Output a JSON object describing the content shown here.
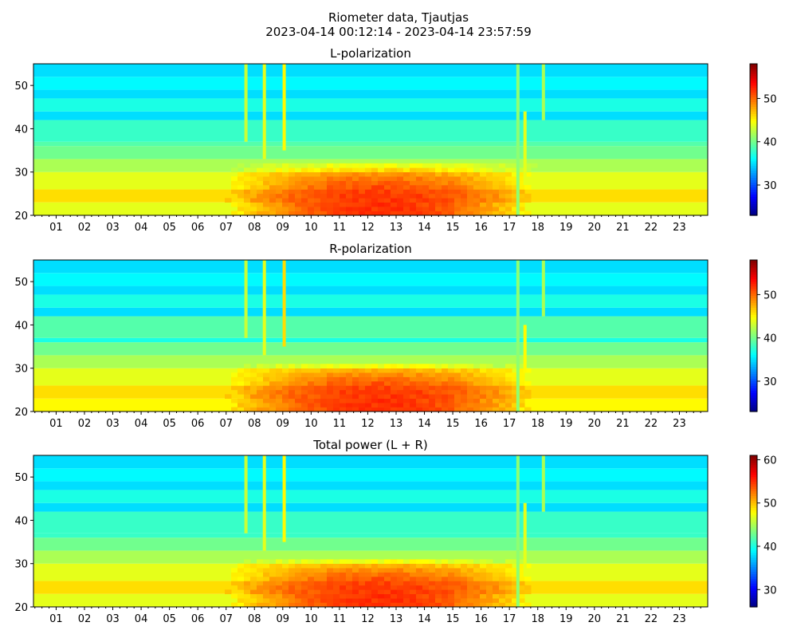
{
  "figure": {
    "title_line1": "Riometer data, Tjautjas",
    "title_line2": "2023-04-14 00:12:14 - 2023-04-14 23:57:59"
  },
  "chart_data": [
    {
      "type": "heatmap",
      "title": "L-polarization",
      "xlabel": "",
      "ylabel": "",
      "x_unit": "hour of day",
      "xlim": [
        0.2,
        24.0
      ],
      "ylim": [
        20,
        55
      ],
      "x_ticks": [
        "01",
        "02",
        "03",
        "04",
        "05",
        "06",
        "07",
        "08",
        "09",
        "10",
        "11",
        "12",
        "13",
        "14",
        "15",
        "16",
        "17",
        "18",
        "19",
        "20",
        "21",
        "22",
        "23"
      ],
      "y_ticks": [
        20,
        30,
        40,
        50
      ],
      "colormap": "jet",
      "colorbar": {
        "range": [
          23,
          58
        ],
        "ticks": [
          30,
          40,
          50
        ]
      },
      "bands": [
        {
          "y": [
            20,
            23
          ],
          "value": 44
        },
        {
          "y": [
            23,
            26
          ],
          "value": 46
        },
        {
          "y": [
            26,
            30
          ],
          "value": 44
        },
        {
          "y": [
            30,
            33
          ],
          "value": 42
        },
        {
          "y": [
            33,
            36
          ],
          "value": 40
        },
        {
          "y": [
            36,
            37
          ],
          "value": 39
        },
        {
          "y": [
            37,
            42
          ],
          "value": 38
        },
        {
          "y": [
            42,
            44
          ],
          "value": 35
        },
        {
          "y": [
            44,
            47
          ],
          "value": 37
        },
        {
          "y": [
            47,
            49
          ],
          "value": 35
        },
        {
          "y": [
            49,
            52
          ],
          "value": 36
        },
        {
          "y": [
            52,
            55
          ],
          "value": 35
        }
      ],
      "daytime_peak": {
        "center_hour": 12.3,
        "halfwidth_hours": 5.5,
        "y_top": 32,
        "peak_value": 52
      },
      "spikes": [
        {
          "hour": 7.7,
          "y": [
            37,
            55
          ],
          "value": 43
        },
        {
          "hour": 8.35,
          "y": [
            33,
            55
          ],
          "value": 44
        },
        {
          "hour": 9.05,
          "y": [
            35,
            55
          ],
          "value": 45
        },
        {
          "hour": 17.3,
          "y": [
            20,
            55
          ],
          "value": 41
        },
        {
          "hour": 17.55,
          "y": [
            27,
            44
          ],
          "value": 44
        },
        {
          "hour": 18.2,
          "y": [
            42,
            55
          ],
          "value": 42
        }
      ]
    },
    {
      "type": "heatmap",
      "title": "R-polarization",
      "xlabel": "",
      "ylabel": "",
      "x_unit": "hour of day",
      "xlim": [
        0.2,
        24.0
      ],
      "ylim": [
        20,
        55
      ],
      "x_ticks": [
        "01",
        "02",
        "03",
        "04",
        "05",
        "06",
        "07",
        "08",
        "09",
        "10",
        "11",
        "12",
        "13",
        "14",
        "15",
        "16",
        "17",
        "18",
        "19",
        "20",
        "21",
        "22",
        "23"
      ],
      "y_ticks": [
        20,
        30,
        40,
        50
      ],
      "colormap": "jet",
      "colorbar": {
        "range": [
          23,
          58
        ],
        "ticks": [
          30,
          40,
          50
        ]
      },
      "bands": [
        {
          "y": [
            20,
            23
          ],
          "value": 45
        },
        {
          "y": [
            23,
            26
          ],
          "value": 46
        },
        {
          "y": [
            26,
            30
          ],
          "value": 44
        },
        {
          "y": [
            30,
            33
          ],
          "value": 42
        },
        {
          "y": [
            33,
            36
          ],
          "value": 40
        },
        {
          "y": [
            36,
            37
          ],
          "value": 37
        },
        {
          "y": [
            37,
            42
          ],
          "value": 39
        },
        {
          "y": [
            42,
            44
          ],
          "value": 35
        },
        {
          "y": [
            44,
            47
          ],
          "value": 37
        },
        {
          "y": [
            47,
            49
          ],
          "value": 35
        },
        {
          "y": [
            49,
            52
          ],
          "value": 36
        },
        {
          "y": [
            52,
            55
          ],
          "value": 35
        }
      ],
      "daytime_peak": {
        "center_hour": 12.3,
        "halfwidth_hours": 5.5,
        "y_top": 31,
        "peak_value": 52
      },
      "spikes": [
        {
          "hour": 7.7,
          "y": [
            37,
            55
          ],
          "value": 43
        },
        {
          "hour": 8.35,
          "y": [
            33,
            55
          ],
          "value": 44
        },
        {
          "hour": 9.05,
          "y": [
            35,
            55
          ],
          "value": 46
        },
        {
          "hour": 17.3,
          "y": [
            20,
            55
          ],
          "value": 41
        },
        {
          "hour": 17.55,
          "y": [
            29,
            40
          ],
          "value": 45
        },
        {
          "hour": 18.2,
          "y": [
            42,
            55
          ],
          "value": 42
        }
      ]
    },
    {
      "type": "heatmap",
      "title": "Total power (L + R)",
      "xlabel": "",
      "ylabel": "",
      "x_unit": "hour of day",
      "xlim": [
        0.2,
        24.0
      ],
      "ylim": [
        20,
        55
      ],
      "x_ticks": [
        "01",
        "02",
        "03",
        "04",
        "05",
        "06",
        "07",
        "08",
        "09",
        "10",
        "11",
        "12",
        "13",
        "14",
        "15",
        "16",
        "17",
        "18",
        "19",
        "20",
        "21",
        "22",
        "23"
      ],
      "y_ticks": [
        20,
        30,
        40,
        50
      ],
      "colormap": "jet",
      "colorbar": {
        "range": [
          26,
          61
        ],
        "ticks": [
          30,
          40,
          50,
          60
        ]
      },
      "bands": [
        {
          "y": [
            20,
            23
          ],
          "value": 47
        },
        {
          "y": [
            23,
            26
          ],
          "value": 49
        },
        {
          "y": [
            26,
            30
          ],
          "value": 47
        },
        {
          "y": [
            30,
            33
          ],
          "value": 45
        },
        {
          "y": [
            33,
            36
          ],
          "value": 43
        },
        {
          "y": [
            36,
            37
          ],
          "value": 41
        },
        {
          "y": [
            37,
            42
          ],
          "value": 41
        },
        {
          "y": [
            42,
            44
          ],
          "value": 38
        },
        {
          "y": [
            44,
            47
          ],
          "value": 40
        },
        {
          "y": [
            47,
            49
          ],
          "value": 38
        },
        {
          "y": [
            49,
            52
          ],
          "value": 39
        },
        {
          "y": [
            52,
            55
          ],
          "value": 38
        }
      ],
      "daytime_peak": {
        "center_hour": 12.3,
        "halfwidth_hours": 5.5,
        "y_top": 31,
        "peak_value": 55
      },
      "spikes": [
        {
          "hour": 7.7,
          "y": [
            37,
            55
          ],
          "value": 46
        },
        {
          "hour": 8.35,
          "y": [
            33,
            55
          ],
          "value": 47
        },
        {
          "hour": 9.05,
          "y": [
            35,
            55
          ],
          "value": 48
        },
        {
          "hour": 17.3,
          "y": [
            20,
            55
          ],
          "value": 44
        },
        {
          "hour": 17.55,
          "y": [
            27,
            44
          ],
          "value": 47
        },
        {
          "hour": 18.2,
          "y": [
            42,
            55
          ],
          "value": 45
        }
      ]
    }
  ]
}
